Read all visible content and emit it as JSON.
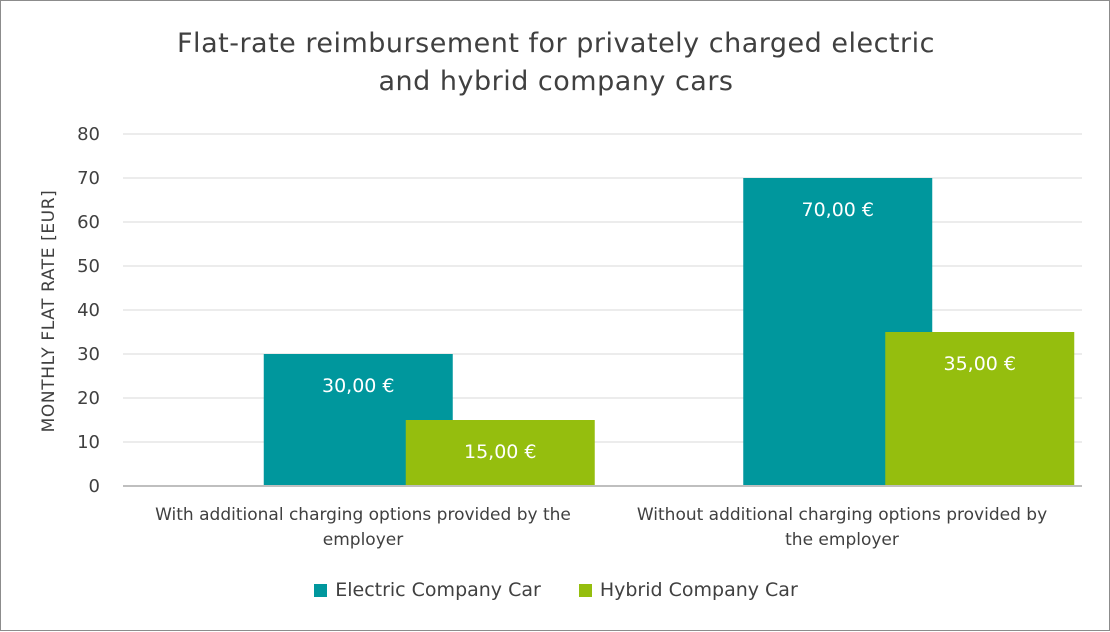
{
  "chart_data": {
    "type": "bar",
    "title": [
      "Flat-rate reimbursement for privately charged electric",
      "and hybrid company cars"
    ],
    "ylabel": "MONTHLY FLAT RATE [EUR]",
    "xlabel": "",
    "ylim": [
      0,
      80
    ],
    "yticks": [
      "0",
      "10",
      "20",
      "30",
      "40",
      "50",
      "60",
      "70",
      "80"
    ],
    "categories": [
      [
        "With additional charging options provided by the",
        "employer"
      ],
      [
        "Without additional charging options provided by",
        "the employer"
      ]
    ],
    "series": [
      {
        "name": "Electric Company Car",
        "color": "#00979d",
        "values": [
          30,
          70
        ],
        "labels": [
          "30,00 €",
          "70,00 €"
        ]
      },
      {
        "name": "Hybrid Company Car",
        "color": "#95be0e",
        "values": [
          15,
          35
        ],
        "labels": [
          "15,00 €",
          "35,00 €"
        ]
      }
    ],
    "grid": true,
    "legend_position": "bottom"
  }
}
